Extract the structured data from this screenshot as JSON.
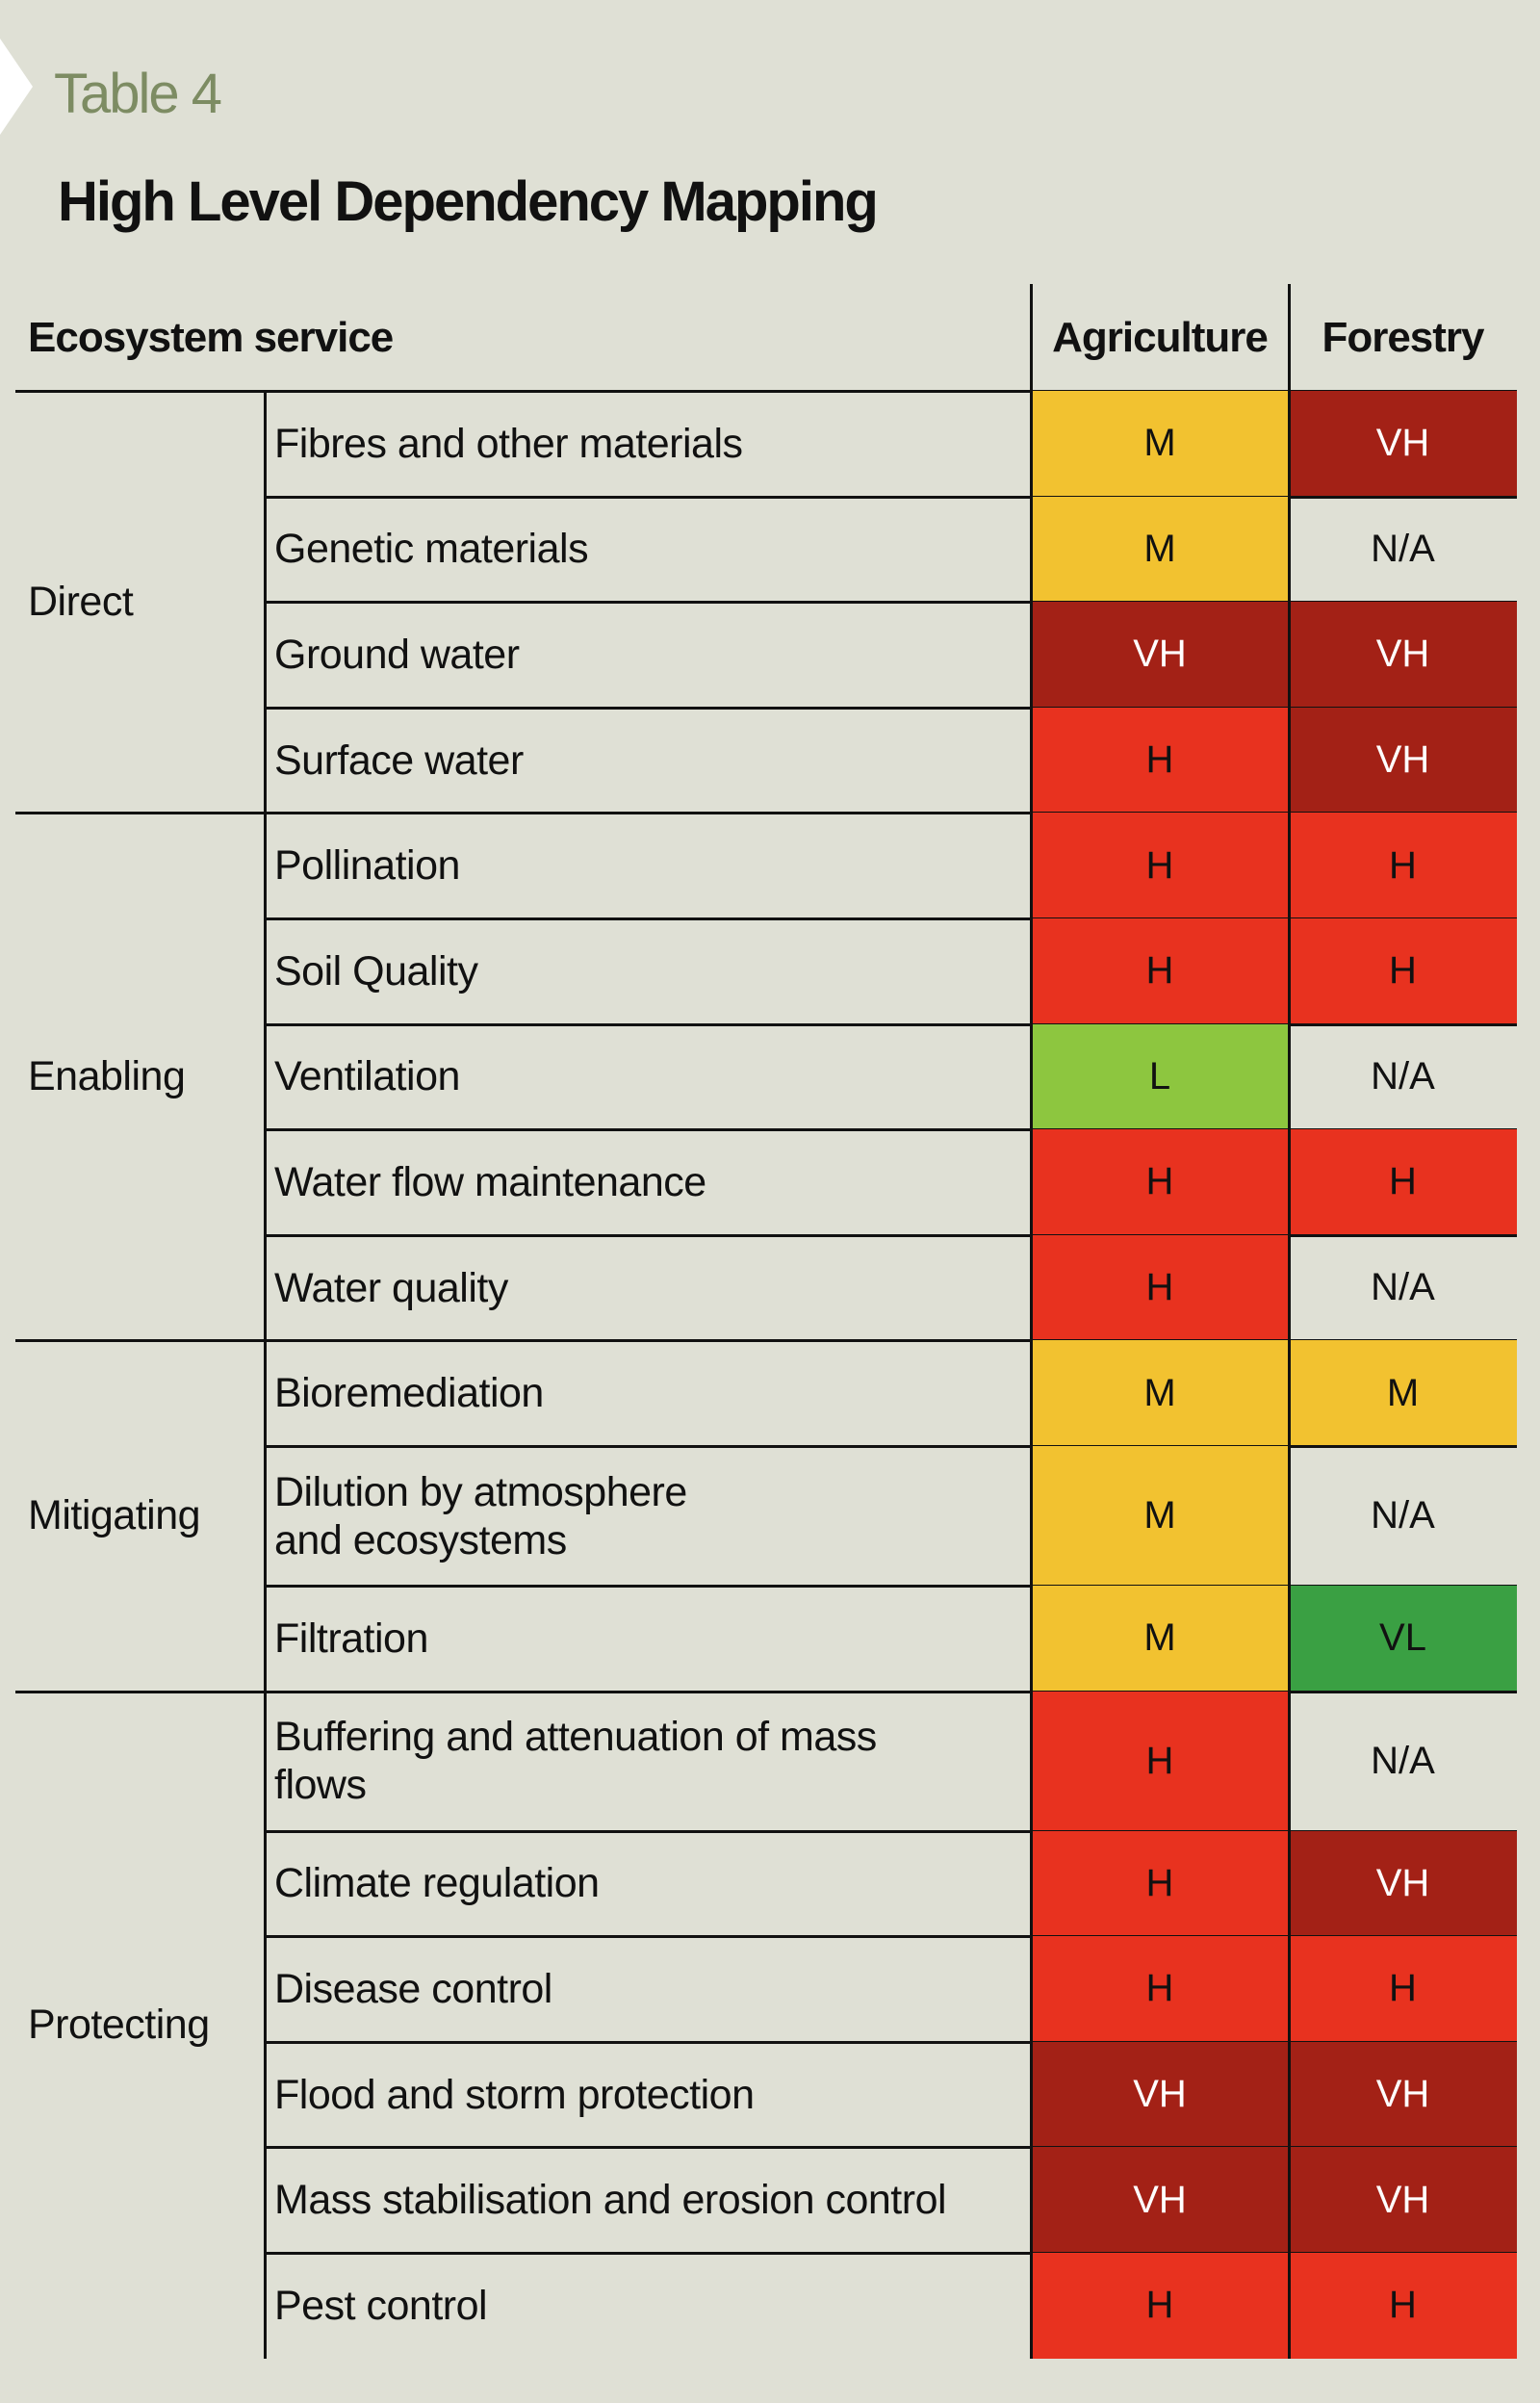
{
  "label": "Table 4",
  "title": "High Level Dependency Mapping",
  "header": [
    "Ecosystem service",
    "Agriculture",
    "Forestry"
  ],
  "groups": [
    {
      "name": "Direct",
      "rows": [
        {
          "service": "Fibres and other materials",
          "agriculture": {
            "text": "M",
            "color": "#f2c230"
          },
          "forestry": {
            "text": "VH",
            "color": "#a32116"
          }
        },
        {
          "service": "Genetic materials",
          "agriculture": {
            "text": "M",
            "color": "#f2c230"
          },
          "forestry": {
            "text": "N/A"
          }
        },
        {
          "service": "Ground water",
          "agriculture": {
            "text": "VH",
            "color": "#a32116"
          },
          "forestry": {
            "text": "VH",
            "color": "#a32116"
          }
        },
        {
          "service": "Surface water",
          "agriculture": {
            "text": "H",
            "color": "#e8321f"
          },
          "forestry": {
            "text": "VH",
            "color": "#a32116"
          }
        }
      ]
    },
    {
      "name": "Enabling",
      "rows": [
        {
          "service": "Pollination",
          "agriculture": {
            "text": "H",
            "color": "#e8321f"
          },
          "forestry": {
            "text": "H",
            "color": "#e8321f"
          }
        },
        {
          "service": "Soil Quality",
          "agriculture": {
            "text": "H",
            "color": "#e8321f"
          },
          "forestry": {
            "text": "H",
            "color": "#e8321f"
          }
        },
        {
          "service": "Ventilation",
          "agriculture": {
            "text": "L",
            "color": "#8dc63f"
          },
          "forestry": {
            "text": "N/A"
          }
        },
        {
          "service": "Water flow maintenance",
          "agriculture": {
            "text": "H",
            "color": "#e8321f"
          },
          "forestry": {
            "text": "H",
            "color": "#e8321f"
          }
        },
        {
          "service": "Water quality",
          "agriculture": {
            "text": "H",
            "color": "#e8321f"
          },
          "forestry": {
            "text": "N/A"
          }
        }
      ]
    },
    {
      "name": "Mitigating",
      "rows": [
        {
          "service": "Bioremediation",
          "agriculture": {
            "text": "M",
            "color": "#f2c230"
          },
          "forestry": {
            "text": "M",
            "color": "#f2c230"
          }
        },
        {
          "service": "Dilution by atmosphere\nand ecosystems",
          "agriculture": {
            "text": "M",
            "color": "#f2c230"
          },
          "forestry": {
            "text": "N/A"
          }
        },
        {
          "service": "Filtration",
          "agriculture": {
            "text": "M",
            "color": "#f2c230"
          },
          "forestry": {
            "text": "VL",
            "color": "#3aa043"
          }
        }
      ]
    },
    {
      "name": "Protecting",
      "rows": [
        {
          "service": "Buffering and attenuation of mass\nflows",
          "agriculture": {
            "text": "H",
            "color": "#e8321f"
          },
          "forestry": {
            "text": "N/A"
          }
        },
        {
          "service": "Climate regulation",
          "agriculture": {
            "text": "H",
            "color": "#e8321f"
          },
          "forestry": {
            "text": "VH",
            "color": "#a32116"
          }
        },
        {
          "service": "Disease control",
          "agriculture": {
            "text": "H",
            "color": "#e8321f"
          },
          "forestry": {
            "text": "H",
            "color": "#e8321f"
          }
        },
        {
          "service": "Flood and storm protection",
          "agriculture": {
            "text": "VH",
            "color": "#a32116"
          },
          "forestry": {
            "text": "VH",
            "color": "#a32116"
          }
        },
        {
          "service": "Mass stabilisation and erosion control",
          "agriculture": {
            "text": "VH",
            "color": "#a32116"
          },
          "forestry": {
            "text": "VH",
            "color": "#a32116"
          }
        },
        {
          "service": "Pest control",
          "agriculture": {
            "text": "H",
            "color": "#e8321f"
          },
          "forestry": {
            "text": "H",
            "color": "#e8321f"
          }
        }
      ]
    }
  ]
}
